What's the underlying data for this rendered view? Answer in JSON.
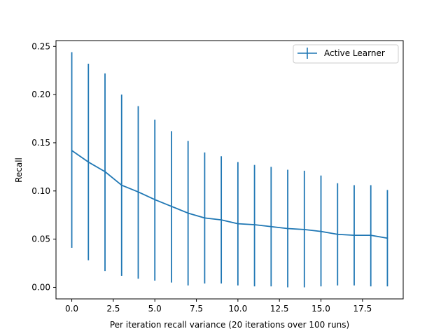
{
  "chart_data": {
    "type": "line",
    "xlabel": "Per iteration recall variance (20 iterations over 100 runs)",
    "ylabel": "Recall",
    "xlim": [
      -0.95,
      19.95
    ],
    "ylim": [
      -0.012,
      0.256
    ],
    "xticks": [
      0.0,
      2.5,
      5.0,
      7.5,
      10.0,
      12.5,
      15.0,
      17.5
    ],
    "xtick_labels": [
      "0.0",
      "2.5",
      "5.0",
      "7.5",
      "10.0",
      "12.5",
      "15.0",
      "17.5"
    ],
    "yticks": [
      0.0,
      0.05,
      0.1,
      0.15,
      0.2,
      0.25
    ],
    "ytick_labels": [
      "0.00",
      "0.05",
      "0.10",
      "0.15",
      "0.20",
      "0.25"
    ],
    "grid": false,
    "legend": {
      "position": "upper-right",
      "entries": [
        "Active Learner"
      ]
    },
    "series": [
      {
        "name": "Active Learner",
        "color": "#1f77b4",
        "x": [
          0,
          1,
          2,
          3,
          4,
          5,
          6,
          7,
          8,
          9,
          10,
          11,
          12,
          13,
          14,
          15,
          16,
          17,
          18,
          19
        ],
        "y": [
          0.142,
          0.13,
          0.12,
          0.106,
          0.099,
          0.091,
          0.084,
          0.077,
          0.072,
          0.07,
          0.066,
          0.065,
          0.063,
          0.061,
          0.06,
          0.058,
          0.055,
          0.054,
          0.054,
          0.051
        ],
        "yerr_low": [
          0.041,
          0.028,
          0.017,
          0.012,
          0.009,
          0.007,
          0.005,
          0.002,
          0.004,
          0.004,
          0.002,
          0.001,
          0.001,
          0.0,
          0.0,
          0.001,
          0.002,
          0.002,
          0.001,
          0.001
        ],
        "yerr_high": [
          0.244,
          0.232,
          0.222,
          0.2,
          0.188,
          0.174,
          0.162,
          0.152,
          0.14,
          0.136,
          0.13,
          0.127,
          0.125,
          0.122,
          0.121,
          0.116,
          0.108,
          0.106,
          0.106,
          0.101
        ]
      }
    ]
  }
}
